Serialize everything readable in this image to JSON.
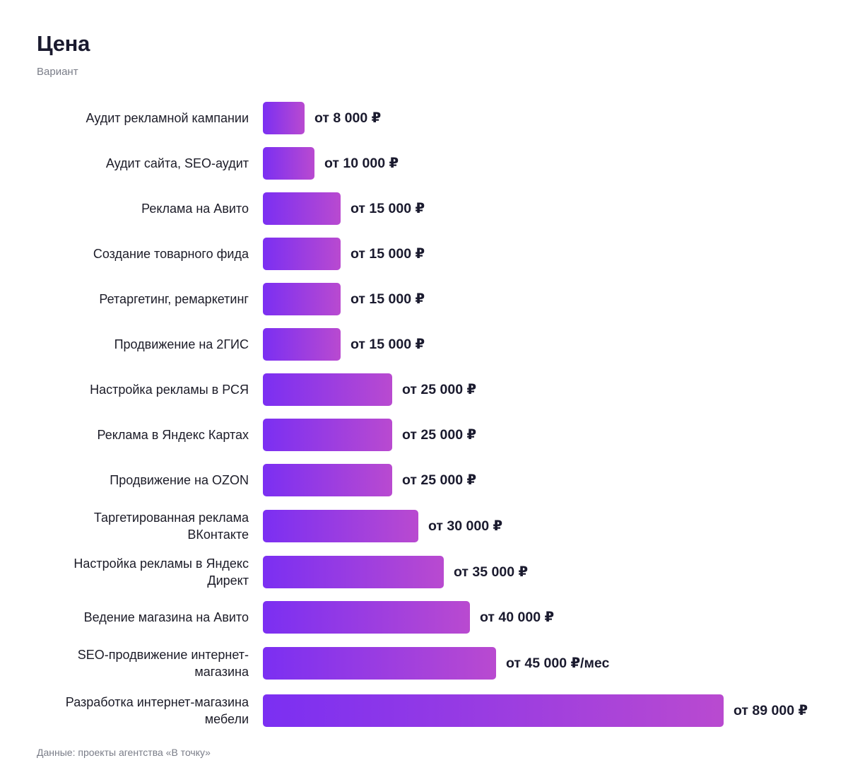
{
  "title": "Цена",
  "subtitle": "Вариант",
  "source": "Данные: проекты агентства «В точку»",
  "colors": {
    "bar_start": "#7b2ff2",
    "bar_end": "#b94ad0",
    "text": "#1c1c28",
    "muted": "#7a7d88"
  },
  "chart_data": {
    "type": "bar",
    "orientation": "horizontal",
    "title": "Цена",
    "subtitle": "Вариант",
    "categories": [
      "Аудит рекламной кампании",
      "Аудит сайта, SEO-аудит",
      "Реклама на Авито",
      "Создание товарного фида",
      "Ретаргетинг, ремаркетинг",
      "Продвижение на 2ГИС",
      "Настройка рекламы в РСЯ",
      "Реклама в Яндекс Картах",
      "Продвижение на OZON",
      "Таргетированная реклама ВКонтакте",
      "Настройка рекламы в Яндекс Директ",
      "Ведение магазина на Авито",
      "SEO-продвижение интернет-магазина",
      "Разработка интернет-магазина мебели"
    ],
    "values": [
      8000,
      10000,
      15000,
      15000,
      15000,
      15000,
      25000,
      25000,
      25000,
      30000,
      35000,
      40000,
      45000,
      89000
    ],
    "value_labels": [
      "от 8 000 ₽",
      "от 10 000 ₽",
      "от 15 000 ₽",
      "от 15 000 ₽",
      "от 15 000 ₽",
      "от 15 000 ₽",
      "от 25 000 ₽",
      "от 25 000 ₽",
      "от 25 000 ₽",
      "от 30 000 ₽",
      "от 35 000 ₽",
      "от 40 000 ₽",
      "от 45 000 ₽/мес",
      "от 89 000 ₽"
    ],
    "xlim": [
      0,
      89000
    ],
    "grid": false,
    "legend": false
  }
}
